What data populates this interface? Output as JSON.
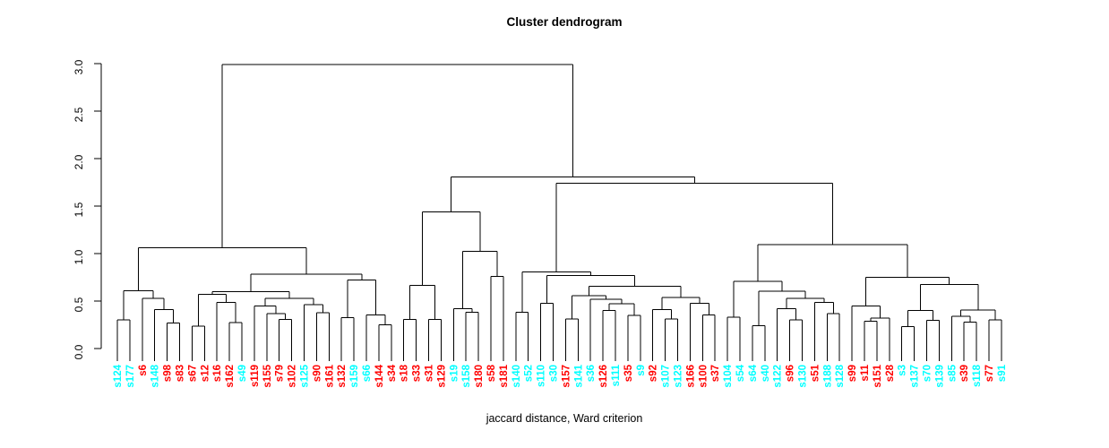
{
  "figure": {
    "title": "Cluster dendrogram",
    "xlabel": "jaccard distance, Ward criterion"
  },
  "chart_data": {
    "type": "dendrogram",
    "title": "Cluster dendrogram",
    "xlabel": "jaccard distance, Ward criterion",
    "ylabel": "",
    "ylim": [
      0,
      3
    ],
    "y_ticks": [
      0.0,
      0.5,
      1.0,
      1.5,
      2.0,
      2.5,
      3.0
    ],
    "y_tick_labels": [
      "0.0",
      "0.5",
      "1.0",
      "1.5",
      "2.0",
      "2.5",
      "3.0"
    ],
    "grid": false,
    "line_color": "#000000",
    "label_colors": {
      "cyan": "#00FFFF",
      "red": "#FF0000"
    },
    "leaves": [
      {
        "label": "s124",
        "color": "cyan"
      },
      {
        "label": "s177",
        "color": "cyan"
      },
      {
        "label": "s6",
        "color": "red"
      },
      {
        "label": "s148",
        "color": "cyan"
      },
      {
        "label": "s98",
        "color": "red"
      },
      {
        "label": "s83",
        "color": "red"
      },
      {
        "label": "s67",
        "color": "red"
      },
      {
        "label": "s12",
        "color": "red"
      },
      {
        "label": "s16",
        "color": "red"
      },
      {
        "label": "s162",
        "color": "red"
      },
      {
        "label": "s49",
        "color": "cyan"
      },
      {
        "label": "s119",
        "color": "red"
      },
      {
        "label": "s155",
        "color": "red"
      },
      {
        "label": "s79",
        "color": "red"
      },
      {
        "label": "s102",
        "color": "red"
      },
      {
        "label": "s125",
        "color": "cyan"
      },
      {
        "label": "s90",
        "color": "red"
      },
      {
        "label": "s161",
        "color": "red"
      },
      {
        "label": "s132",
        "color": "red"
      },
      {
        "label": "s159",
        "color": "cyan"
      },
      {
        "label": "s66",
        "color": "cyan"
      },
      {
        "label": "s144",
        "color": "red"
      },
      {
        "label": "s34",
        "color": "red"
      },
      {
        "label": "s18",
        "color": "red"
      },
      {
        "label": "s33",
        "color": "red"
      },
      {
        "label": "s31",
        "color": "red"
      },
      {
        "label": "s129",
        "color": "red"
      },
      {
        "label": "s19",
        "color": "cyan"
      },
      {
        "label": "s158",
        "color": "cyan"
      },
      {
        "label": "s180",
        "color": "red"
      },
      {
        "label": "s58",
        "color": "red"
      },
      {
        "label": "s181",
        "color": "red"
      },
      {
        "label": "s140",
        "color": "cyan"
      },
      {
        "label": "s52",
        "color": "cyan"
      },
      {
        "label": "s110",
        "color": "cyan"
      },
      {
        "label": "s30",
        "color": "cyan"
      },
      {
        "label": "s157",
        "color": "red"
      },
      {
        "label": "s141",
        "color": "cyan"
      },
      {
        "label": "s36",
        "color": "cyan"
      },
      {
        "label": "s126",
        "color": "red"
      },
      {
        "label": "s111",
        "color": "cyan"
      },
      {
        "label": "s35",
        "color": "red"
      },
      {
        "label": "s9",
        "color": "cyan"
      },
      {
        "label": "s92",
        "color": "red"
      },
      {
        "label": "s107",
        "color": "cyan"
      },
      {
        "label": "s123",
        "color": "cyan"
      },
      {
        "label": "s166",
        "color": "red"
      },
      {
        "label": "s100",
        "color": "red"
      },
      {
        "label": "s37",
        "color": "red"
      },
      {
        "label": "s104",
        "color": "cyan"
      },
      {
        "label": "s54",
        "color": "cyan"
      },
      {
        "label": "s64",
        "color": "cyan"
      },
      {
        "label": "s40",
        "color": "cyan"
      },
      {
        "label": "s122",
        "color": "cyan"
      },
      {
        "label": "s96",
        "color": "red"
      },
      {
        "label": "s130",
        "color": "cyan"
      },
      {
        "label": "s51",
        "color": "red"
      },
      {
        "label": "s188",
        "color": "cyan"
      },
      {
        "label": "s128",
        "color": "cyan"
      },
      {
        "label": "s99",
        "color": "red"
      },
      {
        "label": "s11",
        "color": "red"
      },
      {
        "label": "s151",
        "color": "red"
      },
      {
        "label": "s28",
        "color": "red"
      },
      {
        "label": "s3",
        "color": "cyan"
      },
      {
        "label": "s137",
        "color": "cyan"
      },
      {
        "label": "s70",
        "color": "cyan"
      },
      {
        "label": "s139",
        "color": "cyan"
      },
      {
        "label": "s85",
        "color": "cyan"
      },
      {
        "label": "s39",
        "color": "red"
      },
      {
        "label": "s118",
        "color": "cyan"
      },
      {
        "label": "s77",
        "color": "red"
      },
      {
        "label": "s91",
        "color": "cyan"
      }
    ],
    "merges": [
      2.99,
      [
        1.06,
        [
          0.61,
          [
            0.3,
            0,
            1
          ],
          [
            0.53,
            2,
            [
              0.41,
              3,
              [
                0.27,
                4,
                5
              ]
            ]
          ]
        ],
        [
          0.785,
          [
            0.6,
            [
              0.573,
              [
                0.236,
                6,
                7
              ],
              [
                0.484,
                8,
                [
                  0.274,
                  9,
                  10
                ]
              ]
            ],
            [
              0.53,
              [
                0.446,
                11,
                [
                  0.368,
                  12,
                  [
                    0.305,
                    13,
                    14
                  ]
                ]
              ],
              [
                0.462,
                15,
                [
                  0.377,
                  16,
                  17
                ]
              ]
            ]
          ],
          [
            0.72,
            [
              0.327,
              18,
              19
            ],
            [
              0.352,
              20,
              [
                0.248,
                21,
                22
              ]
            ]
          ]
        ]
      ],
      [
        1.805,
        [
          1.437,
          [
            0.667,
            [
              0.305,
              23,
              24
            ],
            [
              0.305,
              25,
              26
            ]
          ],
          [
            1.022,
            [
              0.421,
              27,
              [
                0.384,
                28,
                29
              ]
            ],
            [
              0.761,
              30,
              31
            ]
          ]
        ],
        [
          1.742,
          [
            0.808,
            [
              0.38,
              32,
              33
            ],
            [
              0.767,
              [
                0.478,
                34,
                35
              ],
              [
                0.657,
                [
                  0.556,
                  [
                    0.31,
                    36,
                    37
                  ],
                  [
                    0.52,
                    38,
                    [
                      0.47,
                      [
                        0.4,
                        39,
                        40
                      ],
                      [
                        0.35,
                        41,
                        42
                      ]
                    ]
                  ]
                ],
                [
                  0.54,
                  [
                    0.41,
                    43,
                    [
                      0.31,
                      44,
                      45
                    ]
                  ],
                  [
                    0.478,
                    46,
                    [
                      0.352,
                      47,
                      48
                    ]
                  ]
                ]
              ]
            ]
          ],
          [
            1.094,
            [
              0.708,
              [
                0.33,
                49,
                50
              ],
              [
                0.604,
                [
                  0.242,
                  51,
                  52
                ],
                [
                  0.53,
                  [
                    0.42,
                    53,
                    [
                      0.3,
                      54,
                      55
                    ]
                  ],
                  [
                    0.488,
                    56,
                    [
                      0.37,
                      57,
                      58
                    ]
                  ]
                ]
              ]
            ],
            [
              0.75,
              [
                0.446,
                59,
                [
                  0.32,
                  [
                    0.29,
                    60,
                    61
                  ],
                  62
                ]
              ],
              [
                0.676,
                [
                  0.4,
                  [
                    0.233,
                    63,
                    64
                  ],
                  [
                    0.295,
                    65,
                    66
                  ]
                ],
                [
                  0.408,
                  [
                    0.34,
                    67,
                    [
                      0.28,
                      68,
                      69
                    ]
                  ],
                  [
                    0.3,
                    70,
                    71
                  ]
                ]
              ]
            ]
          ]
        ]
      ]
    ]
  }
}
